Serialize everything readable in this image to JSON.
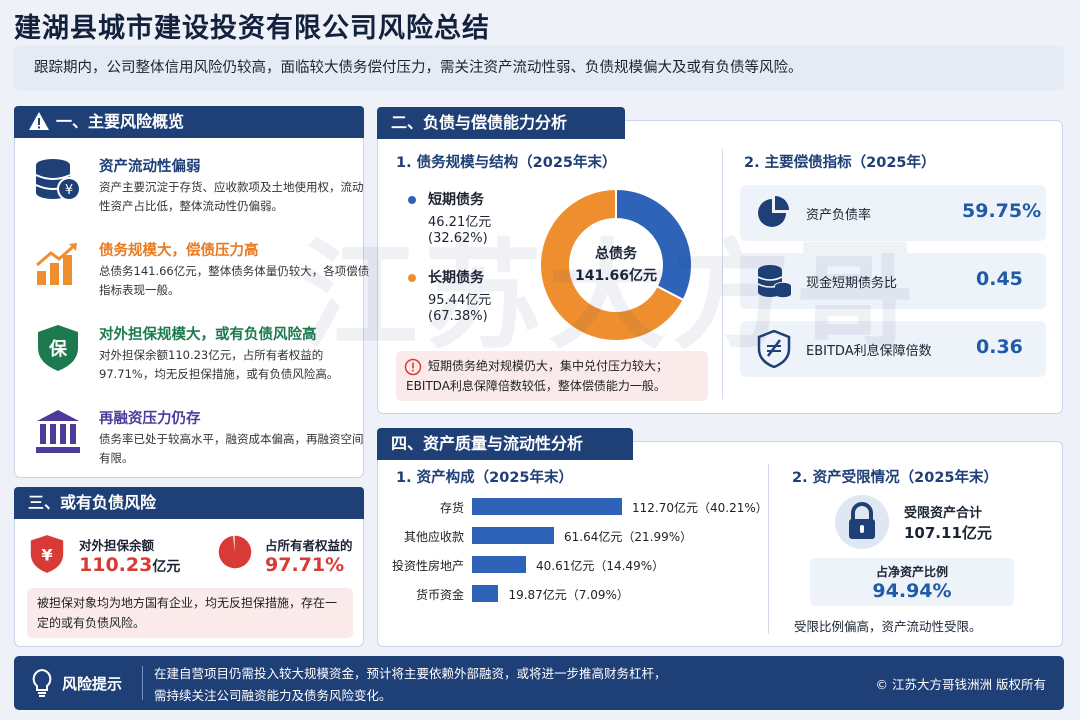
{
  "title": "建湖县城市建设投资有限公司风险总结",
  "summary": "跟踪期内，公司整体信用风险仍较高，面临较大债务偿付压力，需关注资产流动性弱、负债规模偏大及或有负债等风险。",
  "watermark": "江苏大方哥",
  "colors": {
    "navy": "#1f3f77",
    "blue": "#2e63b8",
    "orange": "#ef8e2e",
    "red": "#d83a35",
    "green": "#1d7a4f",
    "purple": "#4e3b99"
  },
  "section1": {
    "tab": "一、主要风险概览",
    "tab_icon": "warning-icon",
    "items": [
      {
        "icon": "database-coin-icon",
        "head": "资产流动性偏弱",
        "desc": "资产主要沉淀于存货、应收款项及土地使用权，流动性资产占比低，整体流动性仍偏弱。"
      },
      {
        "icon": "growth-chart-icon",
        "head": "债务规模大，偿债压力高",
        "desc": "总债务141.66亿元，整体债务体量仍较大，各项偿债指标表现一般。"
      },
      {
        "icon": "guarantee-shield-icon",
        "head": "对外担保规模大，或有负债风险高",
        "desc": "对外担保余额110.23亿元，占所有者权益的97.71%，均无反担保措施，或有负债风险高。"
      },
      {
        "icon": "bank-icon",
        "head": "再融资压力仍存",
        "desc": "债务率已处于较高水平，融资成本偏高，再融资空间有限。"
      }
    ]
  },
  "section3": {
    "tab": "三、或有负债风险",
    "guarantee_label": "对外担保余额",
    "guarantee_value": "110.23",
    "guarantee_unit": "亿元",
    "equity_label": "占所有者权益的",
    "equity_value": "97.71%",
    "equity_fraction": 0.9771,
    "note": "被担保对象均为地方国有企业，均无反担保措施，存在一定的或有负债风险。"
  },
  "section2": {
    "tab": "二、负债与偿债能力分析",
    "sub1": "1. 债务规模与结构（2025年末）",
    "sub2": "2. 主要偿债指标（2025年）",
    "legend": [
      {
        "name": "短期债务",
        "amount": "46.21亿元",
        "pct": "(32.62%)"
      },
      {
        "name": "长期债务",
        "amount": "95.44亿元",
        "pct": "(67.38%)"
      }
    ],
    "donut_center_label": "总债务",
    "donut_center_value": "141.66亿元",
    "note_line1": "短期债务绝对规模仍大，集中兑付压力较大；",
    "note_line2": "EBITDA利息保障倍数较低，整体偿债能力一般。",
    "indicators": [
      {
        "icon": "pie-icon",
        "label": "资产负债率",
        "value": "59.75%"
      },
      {
        "icon": "coins-stack-icon",
        "label": "现金短期债务比",
        "value": "0.45"
      },
      {
        "icon": "interest-shield-icon",
        "label": "EBITDA利息保障倍数",
        "value": "0.36"
      }
    ]
  },
  "chart_data": [
    {
      "type": "pie",
      "categories": [
        "短期债务",
        "长期债务"
      ],
      "values": [
        46.21,
        95.44
      ],
      "percent": [
        32.62,
        67.38
      ],
      "total": 141.66,
      "unit": "亿元",
      "colors": [
        "#2e63b8",
        "#ef8e2e"
      ]
    },
    {
      "type": "bar",
      "orientation": "horizontal",
      "categories": [
        "存货",
        "其他应收款",
        "投资性房地产",
        "货币资金"
      ],
      "values": [
        112.7,
        61.64,
        40.61,
        19.87
      ],
      "percent": [
        40.21,
        21.99,
        14.49,
        7.09
      ],
      "unit": "亿元",
      "labels": [
        "112.70亿元（40.21%）",
        "61.64亿元（21.99%）",
        "40.61亿元（14.49%）",
        "19.87亿元（7.09%）"
      ]
    }
  ],
  "section4": {
    "tab": "四、资产质量与流动性分析",
    "sub1": "1. 资产构成（2025年末）",
    "sub2": "2. 资产受限情况（2025年末）",
    "restricted_label": "受限资产合计",
    "restricted_value": "107.11亿元",
    "ratio_label": "占净资产比例",
    "ratio_value": "94.94%",
    "conclusion": "受限比例偏高，资产流动性受限。"
  },
  "footer": {
    "label": "风险提示",
    "line1": "在建自营项目仍需投入较大规模资金，预计将主要依赖外部融资，或将进一步推高财务杠杆，",
    "line2": "需持续关注公司融资能力及债务风险变化。",
    "copyright": "© 江苏大方哥钱洲洲 版权所有"
  }
}
